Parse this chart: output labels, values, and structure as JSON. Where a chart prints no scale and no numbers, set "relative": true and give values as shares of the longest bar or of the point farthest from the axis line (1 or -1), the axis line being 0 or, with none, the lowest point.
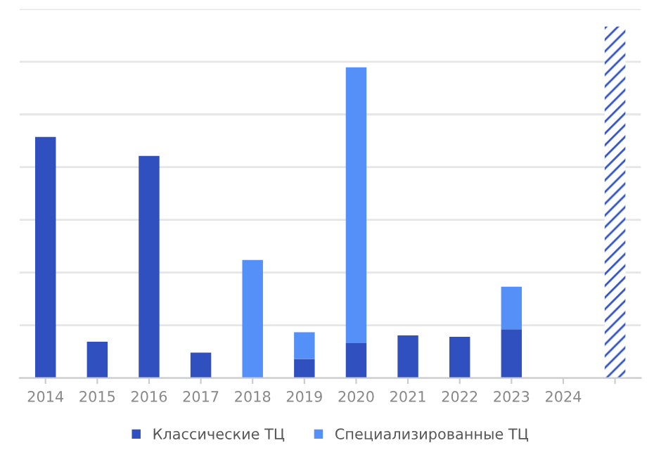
{
  "chart_data": {
    "type": "bar",
    "relative": true,
    "stacked": true,
    "grid": "y",
    "legend": "bottom",
    "categories": [
      "2014",
      "2015",
      "2016",
      "2017",
      "2018",
      "2019",
      "2020",
      "2021",
      "2022",
      "2023",
      "2024",
      null
    ],
    "series": [
      {
        "name": "Классические ТЦ",
        "color": "#3050c0",
        "values": [
          0.686,
          0.103,
          0.632,
          0.072,
          null,
          0.054,
          0.099,
          0.121,
          0.117,
          0.139,
          null,
          null
        ]
      },
      {
        "name": "Специализированные ТЦ",
        "color": "#5590f8",
        "values": [
          null,
          null,
          null,
          null,
          0.336,
          0.076,
          0.785,
          null,
          null,
          0.121,
          null,
          null
        ]
      },
      {
        "color": "#3050c0",
        "values": [
          null,
          null,
          null,
          null,
          null,
          null,
          null,
          null,
          null,
          null,
          null,
          1.0
        ]
      }
    ]
  }
}
